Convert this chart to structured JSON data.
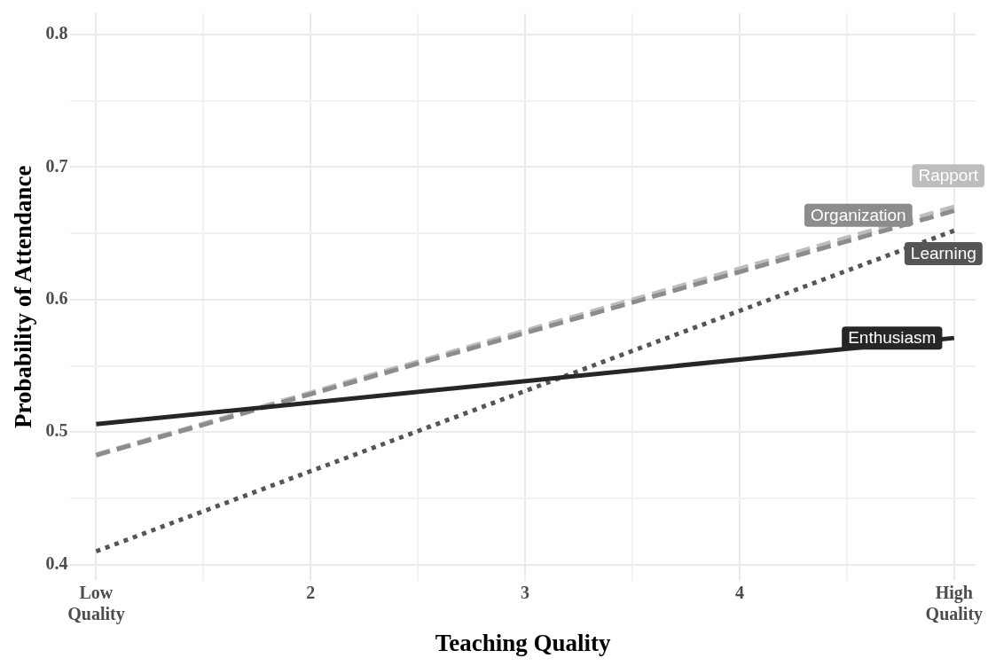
{
  "chart_data": {
    "type": "line",
    "xlabel": "Teaching Quality",
    "ylabel": "Probability of Attendance",
    "x": [
      1,
      5
    ],
    "series": [
      {
        "name": "Enthusiasm",
        "color": "#262626",
        "line_style": "solid",
        "values": [
          0.506,
          0.571
        ]
      },
      {
        "name": "Learning",
        "color": "#555555",
        "line_style": "dotted",
        "values": [
          0.41,
          0.652
        ]
      },
      {
        "name": "Organization",
        "color": "#8c8c8c",
        "line_style": "dashed",
        "values": [
          0.4825,
          0.667
        ]
      },
      {
        "name": "Rapport",
        "color": "#bdbdbd",
        "line_style": "dashed",
        "values": [
          0.483,
          0.67
        ]
      }
    ],
    "xlim": [
      0.88,
      5.1
    ],
    "xticks": [
      {
        "value": 1,
        "label": "Low\nQuality"
      },
      {
        "value": 1.5,
        "label": null
      },
      2,
      {
        "value": 2.5,
        "label": null
      },
      3,
      {
        "value": 3.5,
        "label": null
      },
      4,
      {
        "value": 4.5,
        "label": null
      },
      {
        "value": 5,
        "label": "High\nQuality"
      }
    ],
    "ylim": [
      0.388,
      0.816
    ],
    "yticks": [
      0.4,
      {
        "value": 0.45,
        "label": null
      },
      0.5,
      {
        "value": 0.55,
        "label": null
      },
      0.6,
      {
        "value": 0.65,
        "label": null
      },
      0.7,
      {
        "value": 0.75,
        "label": null
      },
      0.8
    ],
    "grid": true,
    "legend": false,
    "marker": "none"
  }
}
